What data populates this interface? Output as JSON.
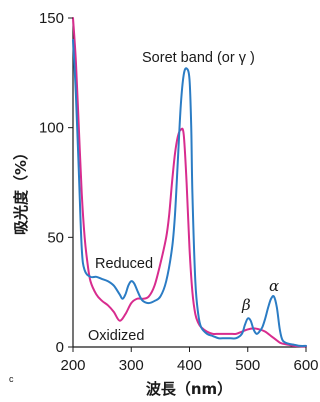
{
  "chart_data": {
    "type": "line",
    "xlabel": "波長（nm）",
    "ylabel": "吸光度（%）",
    "xlim": [
      200,
      600
    ],
    "ylim": [
      0,
      150
    ],
    "xticks": [
      "200",
      "300",
      "400",
      "500",
      "600"
    ],
    "yticks": [
      "0",
      "50",
      "100",
      "150"
    ],
    "grid": false,
    "annotations": {
      "soret": "Soret band (or γ )",
      "reduced": "Reduced",
      "oxidized": "Oxidized",
      "beta": "β",
      "alpha": "α",
      "corner_mark": "c"
    },
    "series": [
      {
        "name": "Reduced",
        "color": "#2b7cc4",
        "x": [
          200,
          205,
          210,
          215,
          220,
          230,
          240,
          250,
          260,
          270,
          280,
          285,
          290,
          295,
          300,
          305,
          310,
          315,
          320,
          330,
          340,
          350,
          360,
          370,
          375,
          380,
          385,
          390,
          395,
          400,
          403,
          405,
          410,
          415,
          420,
          430,
          440,
          450,
          460,
          470,
          480,
          490,
          495,
          500,
          505,
          510,
          515,
          520,
          525,
          530,
          535,
          540,
          545,
          550,
          555,
          560,
          570,
          580,
          590,
          600
        ],
        "values": [
          140,
          115,
          80,
          45,
          35,
          32,
          32,
          31,
          30,
          28,
          24,
          22,
          24,
          28,
          30,
          29,
          26,
          23,
          21,
          20,
          21,
          23,
          30,
          45,
          60,
          85,
          110,
          124,
          127,
          122,
          100,
          70,
          30,
          15,
          9,
          6,
          5,
          4,
          4,
          4,
          4,
          6,
          10,
          13,
          12,
          8,
          6,
          7,
          9,
          13,
          18,
          22,
          23,
          18,
          8,
          3,
          1.5,
          1,
          0.5,
          0.5
        ]
      },
      {
        "name": "Oxidized",
        "color": "#d82c8e",
        "x": [
          200,
          205,
          210,
          215,
          220,
          225,
          230,
          240,
          250,
          260,
          270,
          280,
          290,
          300,
          310,
          320,
          330,
          340,
          350,
          360,
          365,
          370,
          375,
          380,
          385,
          390,
          395,
          400,
          405,
          410,
          415,
          420,
          430,
          440,
          450,
          460,
          470,
          480,
          490,
          500,
          510,
          520,
          530,
          540,
          545,
          550,
          555,
          560,
          570,
          580,
          590,
          600
        ],
        "values": [
          150,
          130,
          100,
          70,
          50,
          38,
          30,
          24,
          21,
          19,
          16,
          12,
          15,
          20,
          22,
          22,
          23,
          28,
          38,
          50,
          60,
          75,
          88,
          96,
          99,
          97,
          75,
          45,
          25,
          15,
          11,
          9,
          7,
          6,
          6,
          6,
          6,
          6,
          7,
          8,
          8.5,
          8,
          7,
          5,
          4,
          3,
          2,
          1.5,
          1,
          0.5,
          0.3,
          0.2
        ]
      }
    ]
  }
}
